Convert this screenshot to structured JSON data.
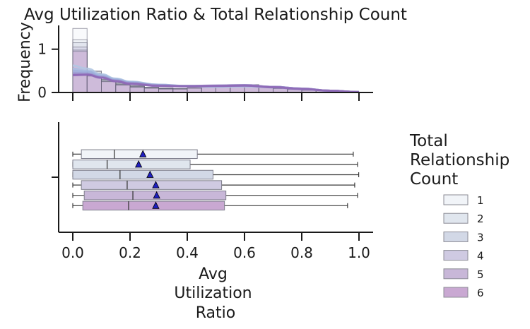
{
  "chart_data": {
    "title": "Avg Utilization Ratio & Total Relationship Count",
    "x_label_lines": [
      "Avg",
      "Utilization",
      "Ratio"
    ],
    "x_ticks": [
      "0.0",
      "0.2",
      "0.4",
      "0.6",
      "0.8",
      "1.0"
    ],
    "x_tick_values": [
      0.0,
      0.2,
      0.4,
      0.6,
      0.8,
      1.0
    ],
    "xlim": [
      -0.05,
      1.05
    ],
    "legend_title_lines": [
      "Total",
      "Relationship",
      "Count"
    ],
    "legend_placement": "right",
    "panels": [
      {
        "type": "histogram",
        "ylabel": "Frequency",
        "y_ticks": [
          "0",
          "1"
        ],
        "y_tick_values": [
          0,
          1
        ],
        "ylim": [
          0,
          1.55
        ],
        "bins": [
          0.0,
          0.05,
          0.1,
          0.15,
          0.2,
          0.25,
          0.3,
          0.35,
          0.4,
          0.45,
          0.5,
          0.55,
          0.6,
          0.65,
          0.7,
          0.75,
          0.8,
          0.85,
          0.9,
          0.95,
          1.0
        ],
        "series": [
          {
            "name": "1",
            "values": [
              1.48,
              0.5,
              0.28,
              0.22,
              0.15,
              0.12,
              0.1,
              0.09,
              0.1,
              0.12,
              0.14,
              0.13,
              0.15,
              0.12,
              0.1,
              0.08,
              0.06,
              0.04,
              0.02,
              0.01
            ]
          },
          {
            "name": "2",
            "values": [
              1.22,
              0.48,
              0.3,
              0.22,
              0.16,
              0.12,
              0.1,
              0.09,
              0.1,
              0.13,
              0.14,
              0.14,
              0.16,
              0.13,
              0.1,
              0.08,
              0.06,
              0.04,
              0.02,
              0.01
            ]
          },
          {
            "name": "3",
            "values": [
              1.15,
              0.45,
              0.3,
              0.2,
              0.15,
              0.11,
              0.09,
              0.08,
              0.1,
              0.14,
              0.16,
              0.15,
              0.17,
              0.13,
              0.1,
              0.08,
              0.06,
              0.04,
              0.02,
              0.01
            ]
          },
          {
            "name": "4",
            "values": [
              1.05,
              0.42,
              0.28,
              0.19,
              0.14,
              0.11,
              0.09,
              0.08,
              0.1,
              0.13,
              0.17,
              0.15,
              0.18,
              0.14,
              0.1,
              0.08,
              0.06,
              0.04,
              0.02,
              0.01
            ]
          },
          {
            "name": "5",
            "values": [
              0.98,
              0.4,
              0.26,
              0.18,
              0.13,
              0.1,
              0.08,
              0.08,
              0.1,
              0.13,
              0.16,
              0.15,
              0.18,
              0.13,
              0.1,
              0.08,
              0.06,
              0.04,
              0.02,
              0.01
            ]
          },
          {
            "name": "6",
            "values": [
              0.95,
              0.38,
              0.25,
              0.17,
              0.12,
              0.1,
              0.08,
              0.08,
              0.1,
              0.12,
              0.15,
              0.14,
              0.17,
              0.12,
              0.09,
              0.07,
              0.05,
              0.04,
              0.02,
              0.01
            ]
          }
        ],
        "kde": [
          {
            "name": "1",
            "x": [
              0.0,
              0.05,
              0.1,
              0.15,
              0.2,
              0.3,
              0.4,
              0.5,
              0.6,
              0.7,
              0.8,
              0.9,
              1.0
            ],
            "y": [
              0.62,
              0.55,
              0.42,
              0.32,
              0.25,
              0.18,
              0.14,
              0.13,
              0.14,
              0.12,
              0.08,
              0.04,
              0.01
            ]
          },
          {
            "name": "2",
            "x": [
              0.0,
              0.05,
              0.1,
              0.15,
              0.2,
              0.3,
              0.4,
              0.5,
              0.6,
              0.7,
              0.8,
              0.9,
              1.0
            ],
            "y": [
              0.55,
              0.5,
              0.4,
              0.31,
              0.24,
              0.18,
              0.15,
              0.14,
              0.15,
              0.12,
              0.08,
              0.04,
              0.01
            ]
          },
          {
            "name": "3",
            "x": [
              0.0,
              0.05,
              0.1,
              0.15,
              0.2,
              0.3,
              0.4,
              0.5,
              0.6,
              0.7,
              0.8,
              0.9,
              1.0
            ],
            "y": [
              0.5,
              0.48,
              0.38,
              0.29,
              0.23,
              0.17,
              0.15,
              0.15,
              0.16,
              0.13,
              0.09,
              0.04,
              0.01
            ]
          },
          {
            "name": "4",
            "x": [
              0.0,
              0.05,
              0.1,
              0.15,
              0.2,
              0.3,
              0.4,
              0.5,
              0.6,
              0.7,
              0.8,
              0.9,
              1.0
            ],
            "y": [
              0.45,
              0.44,
              0.36,
              0.28,
              0.22,
              0.17,
              0.15,
              0.16,
              0.17,
              0.13,
              0.09,
              0.04,
              0.01
            ]
          },
          {
            "name": "5",
            "x": [
              0.0,
              0.05,
              0.1,
              0.15,
              0.2,
              0.3,
              0.4,
              0.5,
              0.6,
              0.7,
              0.8,
              0.9,
              1.0
            ],
            "y": [
              0.42,
              0.42,
              0.35,
              0.27,
              0.21,
              0.16,
              0.15,
              0.16,
              0.17,
              0.13,
              0.09,
              0.04,
              0.01
            ]
          },
          {
            "name": "6",
            "x": [
              0.0,
              0.05,
              0.1,
              0.15,
              0.2,
              0.3,
              0.4,
              0.5,
              0.6,
              0.7,
              0.8,
              0.9,
              1.0
            ],
            "y": [
              0.4,
              0.41,
              0.34,
              0.26,
              0.2,
              0.15,
              0.14,
              0.15,
              0.16,
              0.12,
              0.08,
              0.04,
              0.01
            ]
          }
        ]
      },
      {
        "type": "boxplot",
        "orientation": "horizontal",
        "series": [
          {
            "name": "1",
            "whisker_low": 0.0,
            "q1": 0.03,
            "median": 0.145,
            "q3": 0.435,
            "whisker_high": 0.98,
            "mean": 0.245
          },
          {
            "name": "2",
            "whisker_low": 0.0,
            "q1": 0.0,
            "median": 0.12,
            "q3": 0.41,
            "whisker_high": 0.995,
            "mean": 0.23
          },
          {
            "name": "3",
            "whisker_low": 0.0,
            "q1": 0.0,
            "median": 0.165,
            "q3": 0.49,
            "whisker_high": 0.999,
            "mean": 0.27
          },
          {
            "name": "4",
            "whisker_low": 0.0,
            "q1": 0.03,
            "median": 0.19,
            "q3": 0.52,
            "whisker_high": 0.985,
            "mean": 0.29
          },
          {
            "name": "5",
            "whisker_low": 0.0,
            "q1": 0.04,
            "median": 0.21,
            "q3": 0.535,
            "whisker_high": 0.995,
            "mean": 0.293
          },
          {
            "name": "6",
            "whisker_low": 0.0,
            "q1": 0.035,
            "median": 0.195,
            "q3": 0.53,
            "whisker_high": 0.96,
            "mean": 0.29
          }
        ]
      }
    ],
    "colors": [
      "#f1f4f8",
      "#e0e6ee",
      "#d2d8e6",
      "#cfcae2",
      "#c8b7d8",
      "#c9a8d2"
    ],
    "kde_colors": [
      "#b3c7e2",
      "#a9bde0",
      "#9fb0dc",
      "#9a9fd4",
      "#9b8bc7",
      "#8e67b6"
    ],
    "mean_marker_color": "#1f1fbf"
  }
}
